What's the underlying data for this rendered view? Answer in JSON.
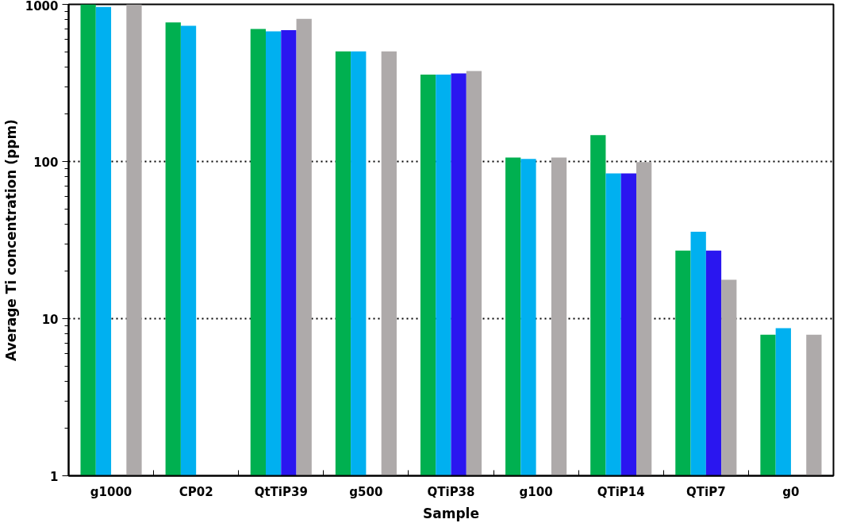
{
  "chart_data": {
    "type": "bar",
    "xlabel": "Sample",
    "ylabel": "Average Ti concentration (ppm)",
    "categories": [
      "g1000",
      "CP02",
      "QtTiP39",
      "g500",
      "QTiP38",
      "g100",
      "QTiP14",
      "QTiP7",
      "g0"
    ],
    "series": [
      {
        "color": "#00b050",
        "values": [
          1000,
          767,
          697,
          502,
          357,
          106,
          147,
          27.1,
          7.9
        ]
      },
      {
        "color": "#00b0f0",
        "values": [
          962,
          731,
          673,
          502,
          357,
          104,
          84,
          35.7,
          8.7
        ]
      },
      {
        "color": "#2a16f0",
        "values": [
          null,
          null,
          685,
          null,
          364,
          null,
          84,
          27.1,
          null
        ]
      },
      {
        "color": "#aeaaaa",
        "values": [
          1000,
          null,
          809,
          502,
          377,
          106,
          99,
          17.7,
          7.9
        ]
      }
    ],
    "log": "y",
    "ylim": [
      1,
      1000
    ],
    "yticks": [
      1,
      10,
      100,
      1000
    ],
    "grid": "y"
  }
}
